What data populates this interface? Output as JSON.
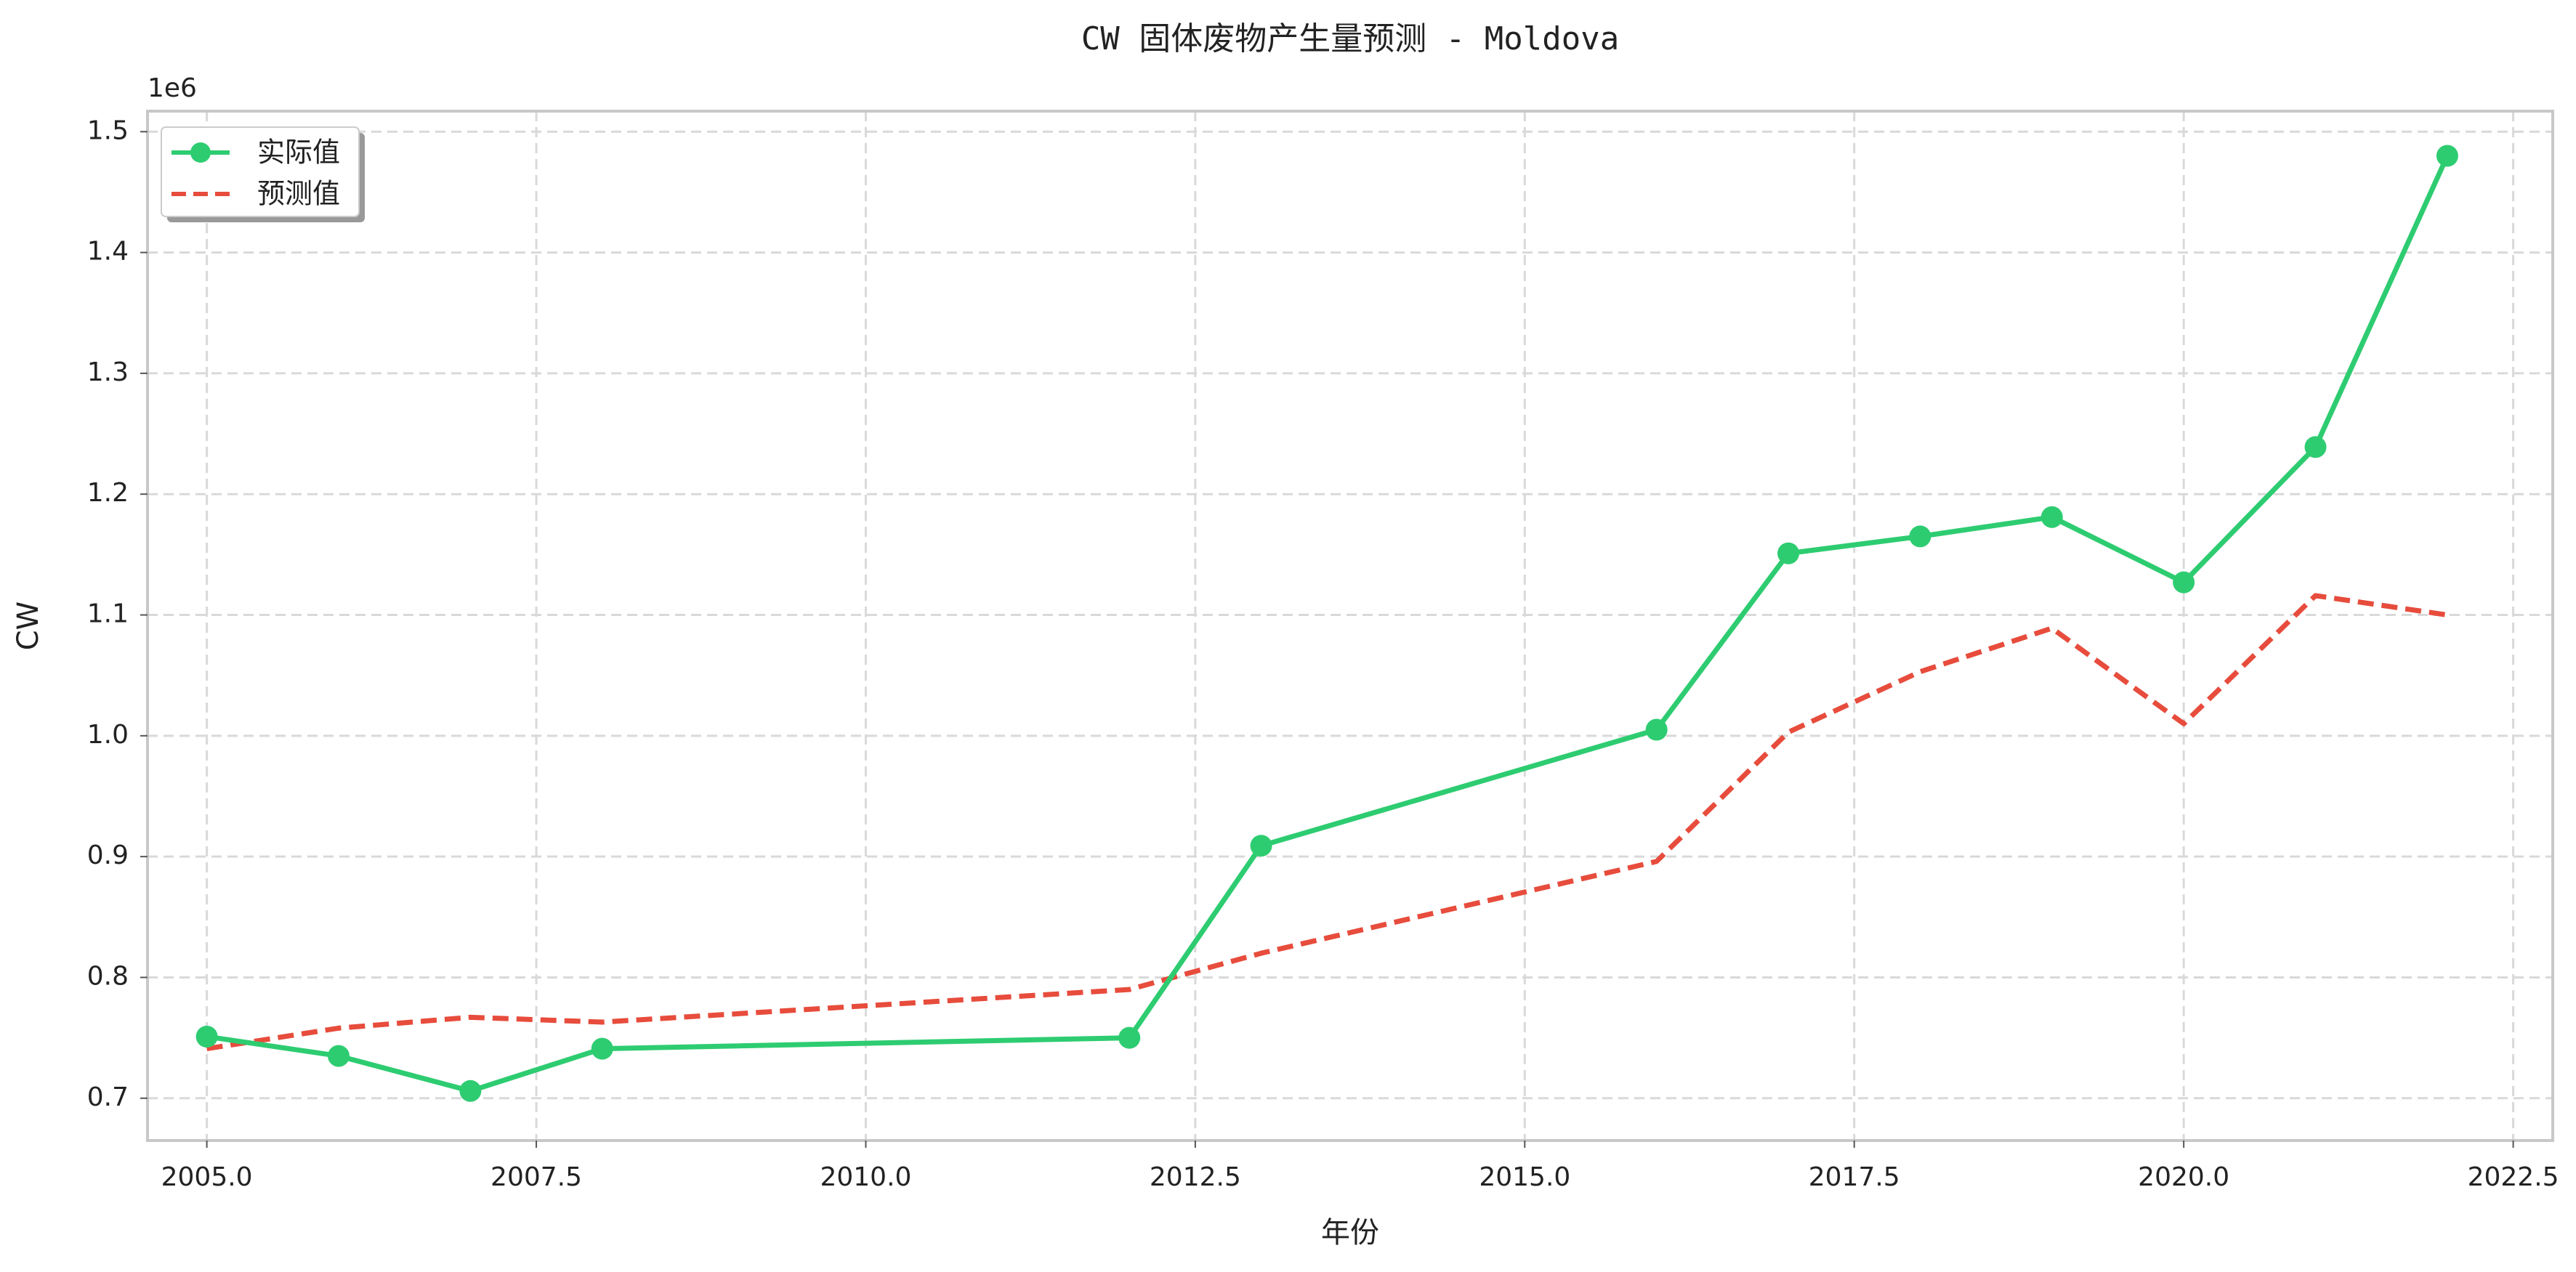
{
  "chart_data": {
    "type": "line",
    "title": "CW 固体废物产生量预测 - Moldova",
    "xlabel": "年份",
    "ylabel": "CW",
    "y_multiplier_label": "1e6",
    "xlim": [
      2004.55,
      2022.8
    ],
    "ylim": [
      0.665,
      1.517
    ],
    "x_ticks": [
      2005.0,
      2007.5,
      2010.0,
      2012.5,
      2015.0,
      2017.5,
      2020.0,
      2022.5
    ],
    "x_tick_labels": [
      "2005.0",
      "2007.5",
      "2010.0",
      "2012.5",
      "2015.0",
      "2017.5",
      "2020.0",
      "2022.5"
    ],
    "y_ticks": [
      0.7,
      0.8,
      0.9,
      1.0,
      1.1,
      1.2,
      1.3,
      1.4,
      1.5
    ],
    "y_tick_labels": [
      "0.7",
      "0.8",
      "0.9",
      "1.0",
      "1.1",
      "1.2",
      "1.3",
      "1.4",
      "1.5"
    ],
    "grid": true,
    "legend_position": "top-left",
    "series": [
      {
        "name": "实际值",
        "color": "#2ecc71",
        "style": "solid",
        "marker": "circle",
        "x": [
          2005,
          2006,
          2007,
          2008,
          2012,
          2013,
          2016,
          2017,
          2018,
          2019,
          2020,
          2021,
          2022
        ],
        "values": [
          0.751,
          0.735,
          0.706,
          0.741,
          0.75,
          0.909,
          1.005,
          1.151,
          1.165,
          1.181,
          1.127,
          1.239,
          1.48
        ]
      },
      {
        "name": "预测值",
        "color": "#e74c3c",
        "style": "dashed",
        "marker": "none",
        "x": [
          2005,
          2006,
          2007,
          2008,
          2012,
          2013,
          2016,
          2017,
          2018,
          2019,
          2020,
          2021,
          2022
        ],
        "values": [
          0.741,
          0.758,
          0.767,
          0.763,
          0.79,
          0.82,
          0.896,
          1.003,
          1.053,
          1.089,
          1.01,
          1.116,
          1.1
        ]
      }
    ]
  }
}
